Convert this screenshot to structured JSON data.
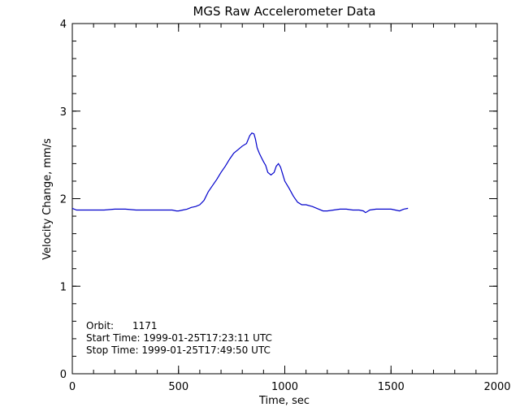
{
  "chart_data": {
    "type": "line",
    "title": "MGS Raw Accelerometer Data",
    "xlabel": "Time, sec",
    "ylabel": "Velocity Change, mm/s",
    "xlim": [
      0,
      2000
    ],
    "ylim": [
      0,
      4
    ],
    "x_ticks": [
      "0",
      "500",
      "1000",
      "1500",
      "2000"
    ],
    "y_ticks": [
      "0",
      "1",
      "2",
      "3",
      "4"
    ],
    "x_tick_values": [
      0,
      500,
      1000,
      1500,
      2000
    ],
    "y_tick_values": [
      0,
      1,
      2,
      3,
      4
    ],
    "x_minor_step": 100,
    "y_minor_step": 0.2,
    "grid": false,
    "series_color": "#0000cc",
    "series": [
      {
        "x": [
          0,
          20,
          40,
          60,
          80,
          100,
          150,
          200,
          250,
          300,
          350,
          400,
          440,
          470,
          490,
          500,
          520,
          540,
          560,
          580,
          600,
          620,
          640,
          660,
          680,
          700,
          720,
          740,
          760,
          780,
          800,
          820,
          835,
          845,
          855,
          862,
          870,
          880,
          890,
          900,
          910,
          920,
          935,
          950,
          960,
          970,
          980,
          990,
          1000,
          1020,
          1040,
          1060,
          1080,
          1100,
          1130,
          1160,
          1180,
          1200,
          1230,
          1260,
          1290,
          1320,
          1350,
          1370,
          1380,
          1400,
          1430,
          1460,
          1480,
          1500,
          1520,
          1540,
          1560,
          1580
        ],
        "y": [
          1.89,
          1.87,
          1.87,
          1.87,
          1.87,
          1.87,
          1.87,
          1.88,
          1.88,
          1.87,
          1.87,
          1.87,
          1.87,
          1.87,
          1.86,
          1.86,
          1.87,
          1.88,
          1.9,
          1.91,
          1.93,
          1.98,
          2.08,
          2.15,
          2.22,
          2.3,
          2.37,
          2.45,
          2.52,
          2.56,
          2.6,
          2.63,
          2.72,
          2.75,
          2.74,
          2.68,
          2.58,
          2.52,
          2.47,
          2.42,
          2.38,
          2.3,
          2.27,
          2.3,
          2.37,
          2.4,
          2.36,
          2.28,
          2.2,
          2.12,
          2.03,
          1.96,
          1.93,
          1.93,
          1.91,
          1.88,
          1.86,
          1.86,
          1.87,
          1.88,
          1.88,
          1.87,
          1.87,
          1.86,
          1.84,
          1.87,
          1.88,
          1.88,
          1.88,
          1.88,
          1.87,
          1.86,
          1.88,
          1.89
        ]
      }
    ],
    "annotations": [
      "Orbit:      1171",
      "Start Time: 1999-01-25T17:23:11 UTC",
      "Stop Time: 1999-01-25T17:49:50 UTC"
    ]
  }
}
